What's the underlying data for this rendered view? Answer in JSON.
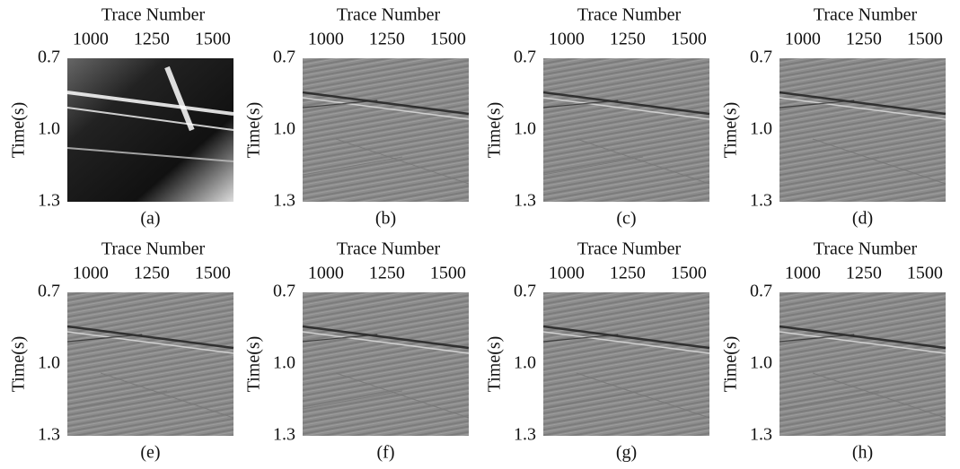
{
  "chart_data": [
    {
      "type": "image",
      "xlabel": "Trace Number",
      "ylabel": "Time(s)",
      "caption": "(a)",
      "xlim": [
        905,
        1585
      ],
      "xticks": [
        1000,
        1250,
        1500
      ],
      "ylim": [
        0.7,
        1.3
      ],
      "yticks": [
        0.7,
        {
          "value": 1,
          "label": "1.0"
        },
        1.3
      ]
    },
    {
      "type": "image",
      "xlabel": "Trace Number",
      "ylabel": "Time(s)",
      "caption": "(b)",
      "xlim": [
        905,
        1585
      ],
      "xticks": [
        1000,
        1250,
        1500
      ],
      "ylim": [
        0.7,
        1.3
      ],
      "yticks": [
        0.7,
        {
          "value": 1,
          "label": "1.0"
        },
        1.3
      ]
    },
    {
      "type": "image",
      "xlabel": "Trace Number",
      "ylabel": "Time(s)",
      "caption": "(c)",
      "xlim": [
        905,
        1585
      ],
      "xticks": [
        1000,
        1250,
        1500
      ],
      "ylim": [
        0.7,
        1.3
      ],
      "yticks": [
        0.7,
        {
          "value": 1,
          "label": "1.0"
        },
        1.3
      ]
    },
    {
      "type": "image",
      "xlabel": "Trace Number",
      "ylabel": "Time(s)",
      "caption": "(d)",
      "xlim": [
        905,
        1585
      ],
      "xticks": [
        1000,
        1250,
        1500
      ],
      "ylim": [
        0.7,
        1.3
      ],
      "yticks": [
        0.7,
        {
          "value": 1,
          "label": "1.0"
        },
        1.3
      ]
    },
    {
      "type": "image",
      "xlabel": "Trace Number",
      "ylabel": "Time(s)",
      "caption": "(e)",
      "xlim": [
        905,
        1585
      ],
      "xticks": [
        1000,
        1250,
        1500
      ],
      "ylim": [
        0.7,
        1.3
      ],
      "yticks": [
        0.7,
        {
          "value": 1,
          "label": "1.0"
        },
        1.3
      ]
    },
    {
      "type": "image",
      "xlabel": "Trace Number",
      "ylabel": "Time(s)",
      "caption": "(f)",
      "xlim": [
        905,
        1585
      ],
      "xticks": [
        1000,
        1250,
        1500
      ],
      "ylim": [
        0.7,
        1.3
      ],
      "yticks": [
        0.7,
        {
          "value": 1,
          "label": "1.0"
        },
        1.3
      ]
    },
    {
      "type": "image",
      "xlabel": "Trace Number",
      "ylabel": "Time(s)",
      "caption": "(g)",
      "xlim": [
        905,
        1585
      ],
      "xticks": [
        1000,
        1250,
        1500
      ],
      "ylim": [
        0.7,
        1.3
      ],
      "yticks": [
        0.7,
        {
          "value": 1,
          "label": "1.0"
        },
        1.3
      ]
    },
    {
      "type": "image",
      "xlabel": "Trace Number",
      "ylabel": "Time(s)",
      "caption": "(h)",
      "xlim": [
        905,
        1585
      ],
      "xticks": [
        1000,
        1250,
        1500
      ],
      "ylim": [
        0.7,
        1.3
      ],
      "yticks": [
        0.7,
        {
          "value": 1,
          "label": "1.0"
        },
        1.3
      ]
    }
  ]
}
